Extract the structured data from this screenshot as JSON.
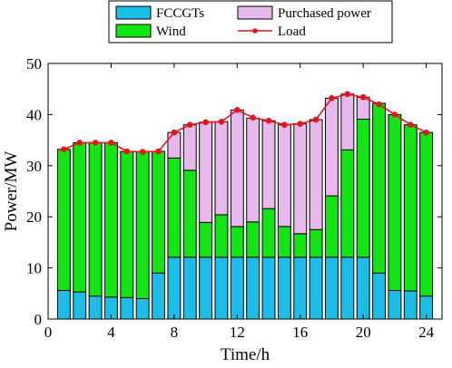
{
  "chart_data": {
    "type": "bar",
    "stacked": true,
    "xlabel": "Time/h",
    "ylabel": "Power/MW",
    "xlim": [
      0,
      25
    ],
    "ylim": [
      0,
      50
    ],
    "x_ticks": [
      0,
      4,
      8,
      12,
      16,
      20,
      24
    ],
    "x_tick_labels": [
      "0",
      "4",
      "8",
      "12",
      "16",
      "20",
      "24"
    ],
    "y_ticks": [
      0,
      10,
      20,
      30,
      40,
      50
    ],
    "y_tick_labels": [
      "0",
      "10",
      "20",
      "30",
      "40",
      "50"
    ],
    "legend_position": "top",
    "x": [
      1,
      2,
      3,
      4,
      5,
      6,
      7,
      8,
      9,
      10,
      11,
      12,
      13,
      14,
      15,
      16,
      17,
      18,
      19,
      20,
      21,
      22,
      23,
      24
    ],
    "series": [
      {
        "name": "FCCGTs",
        "color": "#1bbde9",
        "values": [
          5.6,
          5.3,
          4.5,
          4.3,
          4.2,
          4.0,
          9.0,
          12.1,
          12.1,
          12.1,
          12.1,
          12.1,
          12.1,
          12.1,
          12.1,
          12.1,
          12.1,
          12.1,
          12.1,
          12.1,
          9.0,
          5.6,
          5.5,
          4.5
        ]
      },
      {
        "name": "Wind",
        "color": "#12e612",
        "values": [
          27.6,
          29.2,
          30.0,
          30.2,
          28.6,
          28.7,
          23.8,
          19.4,
          17.0,
          6.8,
          8.3,
          6.0,
          6.9,
          9.5,
          6.0,
          4.6,
          5.4,
          12.0,
          21.0,
          27.0,
          33.2,
          34.4,
          32.5,
          32.0
        ]
      },
      {
        "name": "Purchased power",
        "color": "#e6b8ec",
        "values": [
          0,
          0,
          0,
          0,
          0,
          0,
          0,
          5.0,
          8.9,
          19.6,
          18.2,
          22.8,
          20.3,
          17.2,
          19.9,
          21.5,
          21.5,
          19.1,
          10.9,
          4.3,
          0,
          0,
          0,
          0
        ]
      }
    ],
    "line": {
      "name": "Load",
      "color": "#e8141a",
      "values": [
        33.2,
        34.5,
        34.5,
        34.5,
        32.8,
        32.7,
        32.8,
        36.5,
        38.0,
        38.5,
        38.6,
        40.9,
        39.4,
        38.8,
        38.0,
        38.2,
        39.0,
        43.2,
        44.0,
        43.4,
        42.0,
        40.0,
        38.0,
        36.5
      ]
    },
    "legend": [
      {
        "label": "FCCGTs",
        "kind": "patch",
        "color": "#1bbde9"
      },
      {
        "label": "Purchased power",
        "kind": "patch",
        "color": "#e6b8ec"
      },
      {
        "label": "Wind",
        "kind": "patch",
        "color": "#12e612"
      },
      {
        "label": "Load",
        "kind": "line",
        "color": "#e8141a"
      }
    ]
  }
}
